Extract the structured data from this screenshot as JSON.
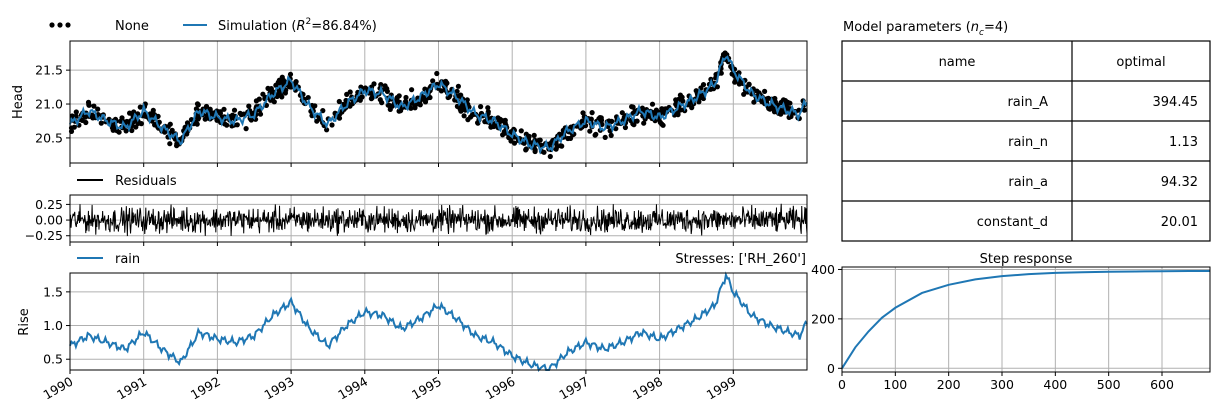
{
  "colors": {
    "simulation": "#1f77b4",
    "observed": "#000000",
    "residuals": "#000000",
    "grid": "#b0b0b0"
  },
  "legend": {
    "observed_label": "None",
    "simulation_prefix": "Simulation (",
    "r2_sym": "R",
    "r2_sup": "2",
    "simulation_value": "=86.84%)",
    "residuals_label": "Residuals",
    "rain_label": "rain",
    "stresses_label": "Stresses: ['RH_260']"
  },
  "params_table": {
    "title_prefix": "Model parameters (",
    "title_sym": "n",
    "title_sub": "c",
    "title_suffix": "=4)",
    "columns": [
      "name",
      "optimal"
    ],
    "rows": [
      {
        "name": "rain_A",
        "optimal": "394.45"
      },
      {
        "name": "rain_n",
        "optimal": "1.13"
      },
      {
        "name": "rain_a",
        "optimal": "94.32"
      },
      {
        "name": "constant_d",
        "optimal": "20.01"
      }
    ]
  },
  "chart_data": [
    {
      "id": "head",
      "type": "line",
      "ylabel": "Head",
      "xlim": [
        1990.0,
        2000.0
      ],
      "ylim": [
        20.13,
        21.93
      ],
      "yticks": [
        "20.5",
        "21.0",
        "21.5"
      ],
      "ytick_values": [
        20.5,
        21.0,
        21.5
      ],
      "grid": true,
      "legend": "top-left outside",
      "series": [
        {
          "name": "Simulation",
          "x": [
            1990.0,
            1990.25,
            1990.5,
            1990.75,
            1991.0,
            1991.25,
            1991.5,
            1991.75,
            1992.0,
            1992.25,
            1992.5,
            1992.75,
            1993.0,
            1993.25,
            1993.5,
            1993.75,
            1994.0,
            1994.25,
            1994.5,
            1994.75,
            1995.0,
            1995.25,
            1995.5,
            1995.75,
            1996.0,
            1996.25,
            1996.5,
            1996.75,
            1997.0,
            1997.25,
            1997.5,
            1997.75,
            1998.0,
            1998.25,
            1998.5,
            1998.75,
            1998.9,
            1999.0,
            1999.25,
            1999.5,
            1999.75,
            1999.9,
            2000.0
          ],
          "y": [
            20.7,
            20.9,
            20.75,
            20.65,
            20.9,
            20.65,
            20.45,
            20.9,
            20.8,
            20.75,
            20.85,
            21.15,
            21.35,
            20.95,
            20.7,
            21.0,
            21.2,
            21.15,
            20.95,
            21.1,
            21.3,
            21.1,
            20.85,
            20.75,
            20.55,
            20.4,
            20.35,
            20.6,
            20.75,
            20.65,
            20.75,
            20.9,
            20.8,
            20.95,
            21.1,
            21.3,
            21.75,
            21.5,
            21.15,
            21.0,
            20.9,
            20.85,
            21.05
          ]
        },
        {
          "name": "None",
          "style": "observations scatter"
        }
      ]
    },
    {
      "id": "residuals",
      "type": "line",
      "xlim": [
        1990.0,
        2000.0
      ],
      "ylim": [
        -0.35,
        0.4
      ],
      "yticks": [
        "0.25",
        "0.00",
        "−0.25"
      ],
      "ytick_values": [
        0.25,
        0.0,
        -0.25
      ],
      "grid": true,
      "series": [
        {
          "name": "Residuals",
          "style": "noise around zero, amplitude ~0.3"
        }
      ]
    },
    {
      "id": "rain_contribution",
      "type": "line",
      "ylabel": "Rise",
      "xlim": [
        1990.0,
        2000.0
      ],
      "ylim": [
        0.34,
        1.78
      ],
      "yticks": [
        "0.5",
        "1.0",
        "1.5"
      ],
      "ytick_values": [
        0.5,
        1.0,
        1.5
      ],
      "xticks": [
        "1990",
        "1991",
        "1992",
        "1993",
        "1994",
        "1995",
        "1996",
        "1997",
        "1998",
        "1999"
      ],
      "xtick_values": [
        1990,
        1991,
        1992,
        1993,
        1994,
        1995,
        1996,
        1997,
        1998,
        1999
      ],
      "grid": true,
      "series": [
        {
          "name": "rain",
          "x": [
            1990.0,
            1990.25,
            1990.5,
            1990.75,
            1991.0,
            1991.25,
            1991.5,
            1991.75,
            1992.0,
            1992.25,
            1992.5,
            1992.75,
            1993.0,
            1993.25,
            1993.5,
            1993.75,
            1994.0,
            1994.25,
            1994.5,
            1994.75,
            1995.0,
            1995.25,
            1995.5,
            1995.75,
            1996.0,
            1996.25,
            1996.5,
            1996.75,
            1997.0,
            1997.25,
            1997.5,
            1997.75,
            1998.0,
            1998.25,
            1998.5,
            1998.75,
            1998.9,
            1999.0,
            1999.25,
            1999.5,
            1999.75,
            1999.9,
            2000.0
          ],
          "y": [
            0.7,
            0.85,
            0.75,
            0.65,
            0.9,
            0.65,
            0.45,
            0.9,
            0.8,
            0.75,
            0.85,
            1.15,
            1.35,
            0.95,
            0.7,
            1.0,
            1.2,
            1.15,
            0.95,
            1.1,
            1.3,
            1.1,
            0.85,
            0.75,
            0.55,
            0.42,
            0.35,
            0.6,
            0.75,
            0.65,
            0.75,
            0.9,
            0.8,
            0.95,
            1.1,
            1.3,
            1.75,
            1.5,
            1.15,
            1.0,
            0.9,
            0.85,
            1.05
          ]
        }
      ]
    },
    {
      "id": "step_response",
      "type": "line",
      "title": "Step response",
      "xlim": [
        0,
        690
      ],
      "ylim": [
        -15,
        410
      ],
      "xticks": [
        "0",
        "100",
        "200",
        "300",
        "400",
        "500",
        "600"
      ],
      "xtick_values": [
        0,
        100,
        200,
        300,
        400,
        500,
        600
      ],
      "yticks": [
        "0",
        "200",
        "400"
      ],
      "ytick_values": [
        0,
        200,
        400
      ],
      "grid": true,
      "series": [
        {
          "name": "Step response",
          "x": [
            0,
            25,
            50,
            75,
            100,
            150,
            200,
            250,
            300,
            350,
            400,
            450,
            500,
            550,
            600,
            650,
            690
          ],
          "y": [
            0,
            85,
            150,
            205,
            245,
            305,
            338,
            360,
            373,
            381,
            386,
            389,
            391,
            392,
            393,
            394,
            394
          ]
        }
      ]
    }
  ]
}
